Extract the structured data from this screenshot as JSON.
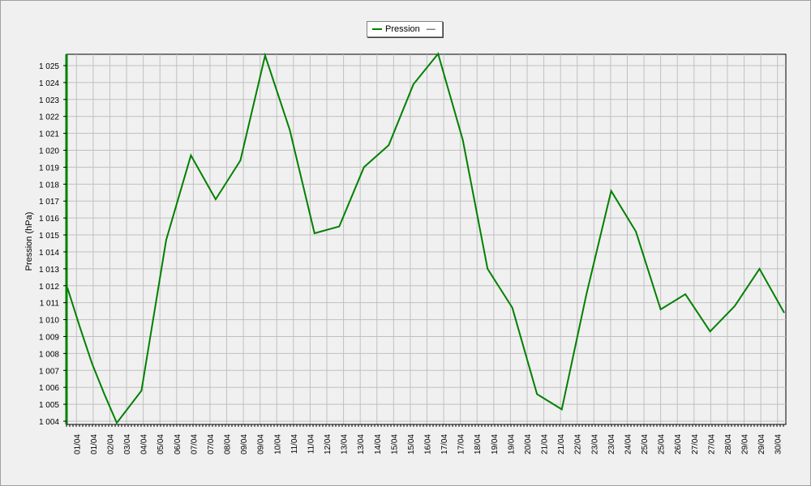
{
  "legend": {
    "label": "Pression",
    "suffix": "—"
  },
  "colors": {
    "series": "#008000",
    "plot_bg": "#f0f0f0",
    "grid": "#c0c0c0",
    "axis": "#008000"
  },
  "chart_data": {
    "type": "line",
    "ylabel": "Pression (hPa)",
    "xlabel": "",
    "ylim": [
      1004,
      1025
    ],
    "yticks": [
      "1 004",
      "1 005",
      "1 006",
      "1 007",
      "1 008",
      "1 009",
      "1 010",
      "1 011",
      "1 012",
      "1 013",
      "1 014",
      "1 015",
      "1 016",
      "1 017",
      "1 018",
      "1 019",
      "1 020",
      "1 021",
      "1 022",
      "1 023",
      "1 024",
      "1 025"
    ],
    "categories": [
      "01/04",
      "01/04",
      "02/04",
      "03/04",
      "04/04",
      "05/04",
      "06/04",
      "07/04",
      "07/04",
      "08/04",
      "09/04",
      "09/04",
      "10/04",
      "11/04",
      "11/04",
      "12/04",
      "13/04",
      "13/04",
      "14/04",
      "15/04",
      "15/04",
      "16/04",
      "17/04",
      "17/04",
      "18/04",
      "19/04",
      "19/04",
      "20/04",
      "21/04",
      "21/04",
      "22/04",
      "23/04",
      "23/04",
      "24/04",
      "25/04",
      "25/04",
      "26/04",
      "27/04",
      "27/04",
      "28/04",
      "29/04",
      "29/04",
      "30/04"
    ],
    "grid": true,
    "legend_position": "top-center",
    "series": [
      {
        "name": "Pression",
        "points": [
          [
            0,
            1011.9
          ],
          [
            1,
            1009.6
          ],
          [
            2,
            1007.4
          ],
          [
            3,
            1005.6
          ],
          [
            4,
            1003.9
          ],
          [
            6,
            1005.8
          ],
          [
            8,
            1014.7
          ],
          [
            10,
            1019.7
          ],
          [
            12,
            1017.1
          ],
          [
            14,
            1019.4
          ],
          [
            16,
            1025.6
          ],
          [
            18,
            1021.2
          ],
          [
            20,
            1015.1
          ],
          [
            22,
            1015.5
          ],
          [
            24,
            1019.0
          ],
          [
            26,
            1020.3
          ],
          [
            28,
            1023.9
          ],
          [
            30,
            1025.7
          ],
          [
            32,
            1020.6
          ],
          [
            34,
            1013.0
          ],
          [
            36,
            1010.7
          ],
          [
            38,
            1005.6
          ],
          [
            40,
            1004.7
          ],
          [
            42,
            1011.5
          ],
          [
            44,
            1017.6
          ],
          [
            46,
            1015.2
          ],
          [
            48,
            1010.6
          ],
          [
            50,
            1011.5
          ],
          [
            52,
            1009.3
          ],
          [
            54,
            1010.8
          ],
          [
            56,
            1013.0
          ],
          [
            58,
            1010.4
          ]
        ],
        "x_range": [
          0,
          58
        ]
      }
    ]
  }
}
